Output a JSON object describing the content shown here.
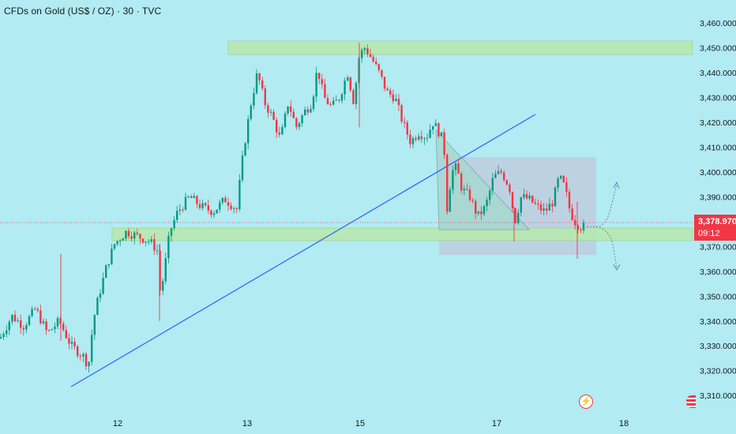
{
  "header": {
    "title": "CFDs on Gold (US$ / OZ) · 30 · TVC"
  },
  "price_axis": {
    "labels": [
      "3,460.000",
      "3,450.000",
      "3,440.000",
      "3,430.000",
      "3,420.000",
      "3,410.000",
      "3,400.000",
      "3,390.000",
      "3,370.000",
      "3,360.000",
      "3,350.000",
      "3,340.000",
      "3,330.000",
      "3,320.000",
      "3,310.000"
    ],
    "values": [
      3460,
      3450,
      3440,
      3430,
      3420,
      3410,
      3400,
      3390,
      3370,
      3360,
      3350,
      3340,
      3330,
      3320,
      3310
    ],
    "range": [
      3304,
      3465
    ]
  },
  "time_axis": {
    "labels": [
      "12",
      "13",
      "15",
      "17",
      "18"
    ]
  },
  "last_price": {
    "value": "3,378.970",
    "countdown": "09:12",
    "color": "#f23645"
  },
  "colors": {
    "background": "#b2ebf2",
    "up": "#089981",
    "down": "#f23645",
    "trendline": "#2962ff",
    "zone_fill": "#b6e7b0",
    "range_box": "#b5c8de"
  },
  "icons": {
    "alert": "lightning-alert-icon",
    "flag": "us-flag-icon"
  },
  "chart_data": {
    "type": "candlestick",
    "title": "CFDs on Gold (US$ / OZ) · 30 · TVC",
    "y_range": [
      3304,
      3465
    ],
    "x_ticks": [
      "12",
      "13",
      "15",
      "17",
      "18"
    ],
    "path": [
      [
        0,
        3333
      ],
      [
        15,
        3342
      ],
      [
        30,
        3338
      ],
      [
        45,
        3345
      ],
      [
        60,
        3335
      ],
      [
        75,
        3340
      ],
      [
        90,
        3330
      ],
      [
        105,
        3326
      ],
      [
        112,
        3322
      ],
      [
        118,
        3340
      ],
      [
        125,
        3350
      ],
      [
        135,
        3362
      ],
      [
        145,
        3371
      ],
      [
        160,
        3376
      ],
      [
        175,
        3374
      ],
      [
        190,
        3372
      ],
      [
        200,
        3368
      ],
      [
        203,
        3350
      ],
      [
        208,
        3360
      ],
      [
        215,
        3376
      ],
      [
        225,
        3384
      ],
      [
        240,
        3390
      ],
      [
        255,
        3386
      ],
      [
        270,
        3384
      ],
      [
        285,
        3389
      ],
      [
        300,
        3385
      ],
      [
        305,
        3400
      ],
      [
        310,
        3412
      ],
      [
        318,
        3428
      ],
      [
        326,
        3440
      ],
      [
        335,
        3428
      ],
      [
        345,
        3422
      ],
      [
        355,
        3413
      ],
      [
        365,
        3428
      ],
      [
        375,
        3418
      ],
      [
        385,
        3424
      ],
      [
        395,
        3428
      ],
      [
        402,
        3442
      ],
      [
        410,
        3430
      ],
      [
        420,
        3426
      ],
      [
        430,
        3430
      ],
      [
        440,
        3440
      ],
      [
        448,
        3428
      ],
      [
        455,
        3447
      ],
      [
        462,
        3450
      ],
      [
        470,
        3446
      ],
      [
        480,
        3440
      ],
      [
        490,
        3432
      ],
      [
        500,
        3430
      ],
      [
        510,
        3420
      ],
      [
        520,
        3412
      ],
      [
        530,
        3416
      ],
      [
        540,
        3414
      ],
      [
        548,
        3420
      ],
      [
        556,
        3416
      ],
      [
        562,
        3412
      ],
      [
        566,
        3385
      ],
      [
        572,
        3400
      ],
      [
        578,
        3402
      ],
      [
        585,
        3393
      ],
      [
        595,
        3390
      ],
      [
        605,
        3382
      ],
      [
        615,
        3386
      ],
      [
        625,
        3398
      ],
      [
        635,
        3400
      ],
      [
        645,
        3394
      ],
      [
        652,
        3380
      ],
      [
        660,
        3390
      ],
      [
        670,
        3389
      ],
      [
        680,
        3386
      ],
      [
        690,
        3384
      ],
      [
        700,
        3388
      ],
      [
        708,
        3398
      ],
      [
        715,
        3394
      ],
      [
        722,
        3384
      ],
      [
        728,
        3380
      ],
      [
        734,
        3378
      ],
      [
        740,
        3378
      ]
    ],
    "annotations": [
      {
        "type": "zone",
        "label": "resistance",
        "price_range": [
          3447,
          3451
        ]
      },
      {
        "type": "zone",
        "label": "support",
        "price_range": [
          3371,
          3375
        ]
      },
      {
        "type": "trendline",
        "from": [
          3320
        ],
        "to": [
          3422
        ]
      },
      {
        "type": "range_box",
        "price_range": [
          3366,
          3406
        ]
      },
      {
        "type": "projection",
        "directions": [
          "up",
          "down"
        ]
      }
    ],
    "grid": false
  }
}
